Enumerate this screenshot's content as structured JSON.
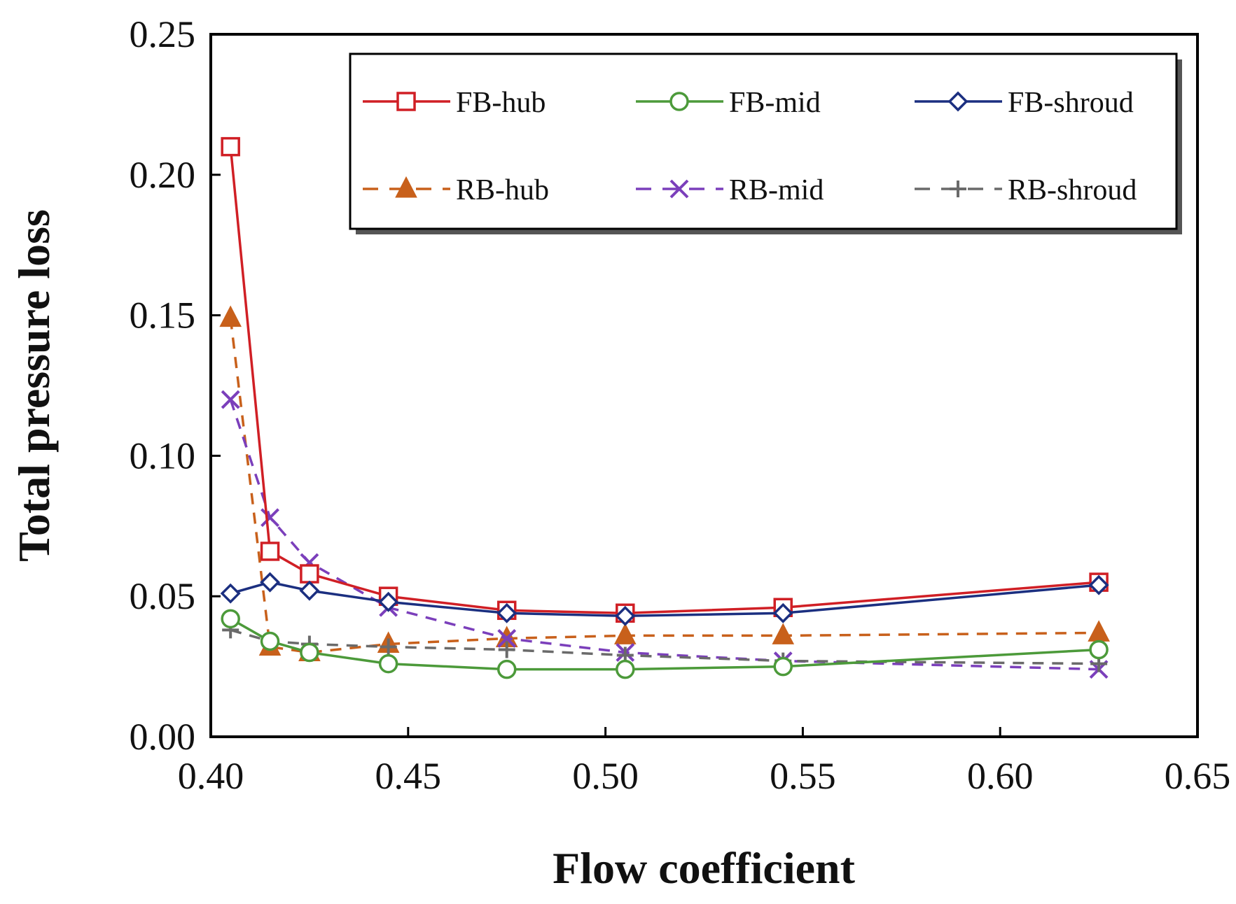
{
  "chart_data": {
    "type": "line",
    "title": "",
    "xlabel": "Flow coefficient",
    "ylabel": "Total pressure loss",
    "xlim": [
      0.4,
      0.65
    ],
    "ylim": [
      0.0,
      0.25
    ],
    "xticks": [
      "0.40",
      "0.45",
      "0.50",
      "0.55",
      "0.60",
      "0.65"
    ],
    "yticks": [
      "0.00",
      "0.05",
      "0.10",
      "0.15",
      "0.20",
      "0.25"
    ],
    "grid": false,
    "legend_position": "top-right",
    "series": [
      {
        "name": "FB-hub",
        "color": "#d01f25",
        "dash": "solid",
        "marker": "square-open",
        "x": [
          0.405,
          0.415,
          0.425,
          0.445,
          0.475,
          0.505,
          0.545,
          0.625
        ],
        "y": [
          0.21,
          0.066,
          0.058,
          0.05,
          0.045,
          0.044,
          0.046,
          0.055
        ]
      },
      {
        "name": "FB-mid",
        "color": "#4c9a3a",
        "dash": "solid",
        "marker": "circle-open",
        "x": [
          0.405,
          0.415,
          0.425,
          0.445,
          0.475,
          0.505,
          0.545,
          0.625
        ],
        "y": [
          0.042,
          0.034,
          0.03,
          0.026,
          0.024,
          0.024,
          0.025,
          0.031
        ]
      },
      {
        "name": "FB-shroud",
        "color": "#1b2f80",
        "dash": "solid",
        "marker": "diamond-open",
        "x": [
          0.405,
          0.415,
          0.425,
          0.445,
          0.475,
          0.505,
          0.545,
          0.625
        ],
        "y": [
          0.051,
          0.055,
          0.052,
          0.048,
          0.044,
          0.043,
          0.044,
          0.054
        ]
      },
      {
        "name": "RB-hub",
        "color": "#c8601b",
        "dash": "dashed",
        "marker": "triangle-filled",
        "x": [
          0.405,
          0.415,
          0.425,
          0.445,
          0.475,
          0.505,
          0.545,
          0.625
        ],
        "y": [
          0.149,
          0.032,
          0.03,
          0.033,
          0.035,
          0.036,
          0.036,
          0.037
        ]
      },
      {
        "name": "RB-mid",
        "color": "#7b3fbb",
        "dash": "dashed",
        "marker": "x",
        "x": [
          0.405,
          0.415,
          0.425,
          0.445,
          0.475,
          0.505,
          0.545,
          0.625
        ],
        "y": [
          0.12,
          0.078,
          0.062,
          0.046,
          0.035,
          0.03,
          0.027,
          0.024
        ]
      },
      {
        "name": "RB-shroud",
        "color": "#6a6a6a",
        "dash": "dashed",
        "marker": "plus",
        "x": [
          0.405,
          0.415,
          0.425,
          0.445,
          0.475,
          0.505,
          0.545,
          0.625
        ],
        "y": [
          0.038,
          0.034,
          0.033,
          0.032,
          0.031,
          0.029,
          0.027,
          0.026
        ]
      }
    ]
  }
}
